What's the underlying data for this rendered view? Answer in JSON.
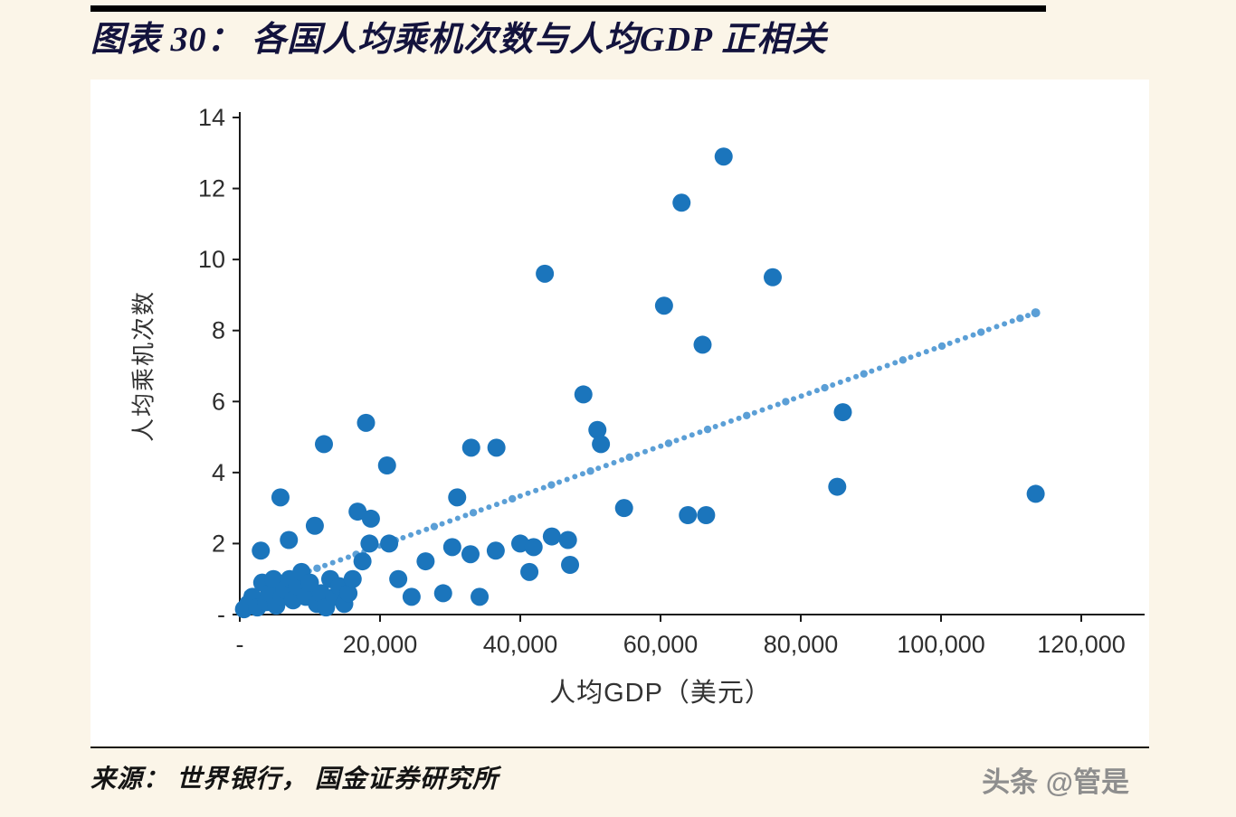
{
  "page": {
    "title": "图表 30：  各国人均乘机次数与人均GDP 正相关",
    "source_label": "来源：  世界银行，  国金证券研究所",
    "watermark": "头条 @管是"
  },
  "chart_data": {
    "type": "scatter",
    "title": "各国人均乘机次数与人均GDP 正相关",
    "xlabel": "人均GDP（美元）",
    "ylabel": "人均乘机次数",
    "xlim": [
      0,
      120000
    ],
    "ylim": [
      0,
      14
    ],
    "x_tick_values": [
      0,
      20000,
      40000,
      60000,
      80000,
      100000,
      120000
    ],
    "x_ticks": [
      "-",
      "20,000",
      "40,000",
      "60,000",
      "80,000",
      "100,000",
      "120,000"
    ],
    "y_tick_values": [
      0,
      2,
      4,
      6,
      8,
      10,
      12,
      14
    ],
    "y_ticks": [
      "-",
      "2",
      "4",
      "6",
      "8",
      "10",
      "12",
      "14"
    ],
    "grid": false,
    "legend": "none",
    "point_color": "#1b75bc",
    "trend_color": "#5b9fd6",
    "axis_color": "#1a1a1a",
    "points": [
      [
        600,
        0.15
      ],
      [
        1200,
        0.3
      ],
      [
        1800,
        0.5
      ],
      [
        2500,
        0.2
      ],
      [
        3000,
        1.8
      ],
      [
        3200,
        0.9
      ],
      [
        3800,
        0.35
      ],
      [
        4200,
        0.6
      ],
      [
        4800,
        1.0
      ],
      [
        5200,
        0.25
      ],
      [
        5800,
        3.3
      ],
      [
        6000,
        0.5
      ],
      [
        6400,
        0.7
      ],
      [
        7000,
        2.1
      ],
      [
        7100,
        1.0
      ],
      [
        7600,
        0.4
      ],
      [
        8200,
        0.8
      ],
      [
        8800,
        1.2
      ],
      [
        9400,
        0.5
      ],
      [
        10000,
        0.9
      ],
      [
        10700,
        2.5
      ],
      [
        11000,
        0.3
      ],
      [
        11600,
        0.6
      ],
      [
        12000,
        4.8
      ],
      [
        12300,
        0.2
      ],
      [
        12900,
        1.0
      ],
      [
        13500,
        0.5
      ],
      [
        14200,
        0.8
      ],
      [
        14900,
        0.3
      ],
      [
        15500,
        0.6
      ],
      [
        16100,
        1.0
      ],
      [
        16800,
        2.9
      ],
      [
        17500,
        1.5
      ],
      [
        18000,
        5.4
      ],
      [
        18500,
        2.0
      ],
      [
        18700,
        2.7
      ],
      [
        21000,
        4.2
      ],
      [
        21300,
        2.0
      ],
      [
        22600,
        1.0
      ],
      [
        24500,
        0.5
      ],
      [
        26500,
        1.5
      ],
      [
        29000,
        0.6
      ],
      [
        30300,
        1.9
      ],
      [
        31000,
        3.3
      ],
      [
        32900,
        1.7
      ],
      [
        33000,
        4.7
      ],
      [
        34200,
        0.5
      ],
      [
        36500,
        1.8
      ],
      [
        36600,
        4.7
      ],
      [
        40000,
        2.0
      ],
      [
        41300,
        1.2
      ],
      [
        41900,
        1.9
      ],
      [
        43500,
        9.6
      ],
      [
        44500,
        2.2
      ],
      [
        46800,
        2.1
      ],
      [
        47100,
        1.4
      ],
      [
        49000,
        6.2
      ],
      [
        51000,
        5.2
      ],
      [
        51500,
        4.8
      ],
      [
        54800,
        3.0
      ],
      [
        60500,
        8.7
      ],
      [
        63000,
        11.6
      ],
      [
        63900,
        2.8
      ],
      [
        66000,
        7.6
      ],
      [
        66500,
        2.8
      ],
      [
        69000,
        12.9
      ],
      [
        76000,
        9.5
      ],
      [
        85200,
        3.6
      ],
      [
        86000,
        5.7
      ],
      [
        113500,
        3.4
      ]
    ],
    "trendline": {
      "style": "dotted",
      "x_start": 1000,
      "y_start": 0.6,
      "x_end": 113500,
      "y_end": 8.5
    }
  }
}
